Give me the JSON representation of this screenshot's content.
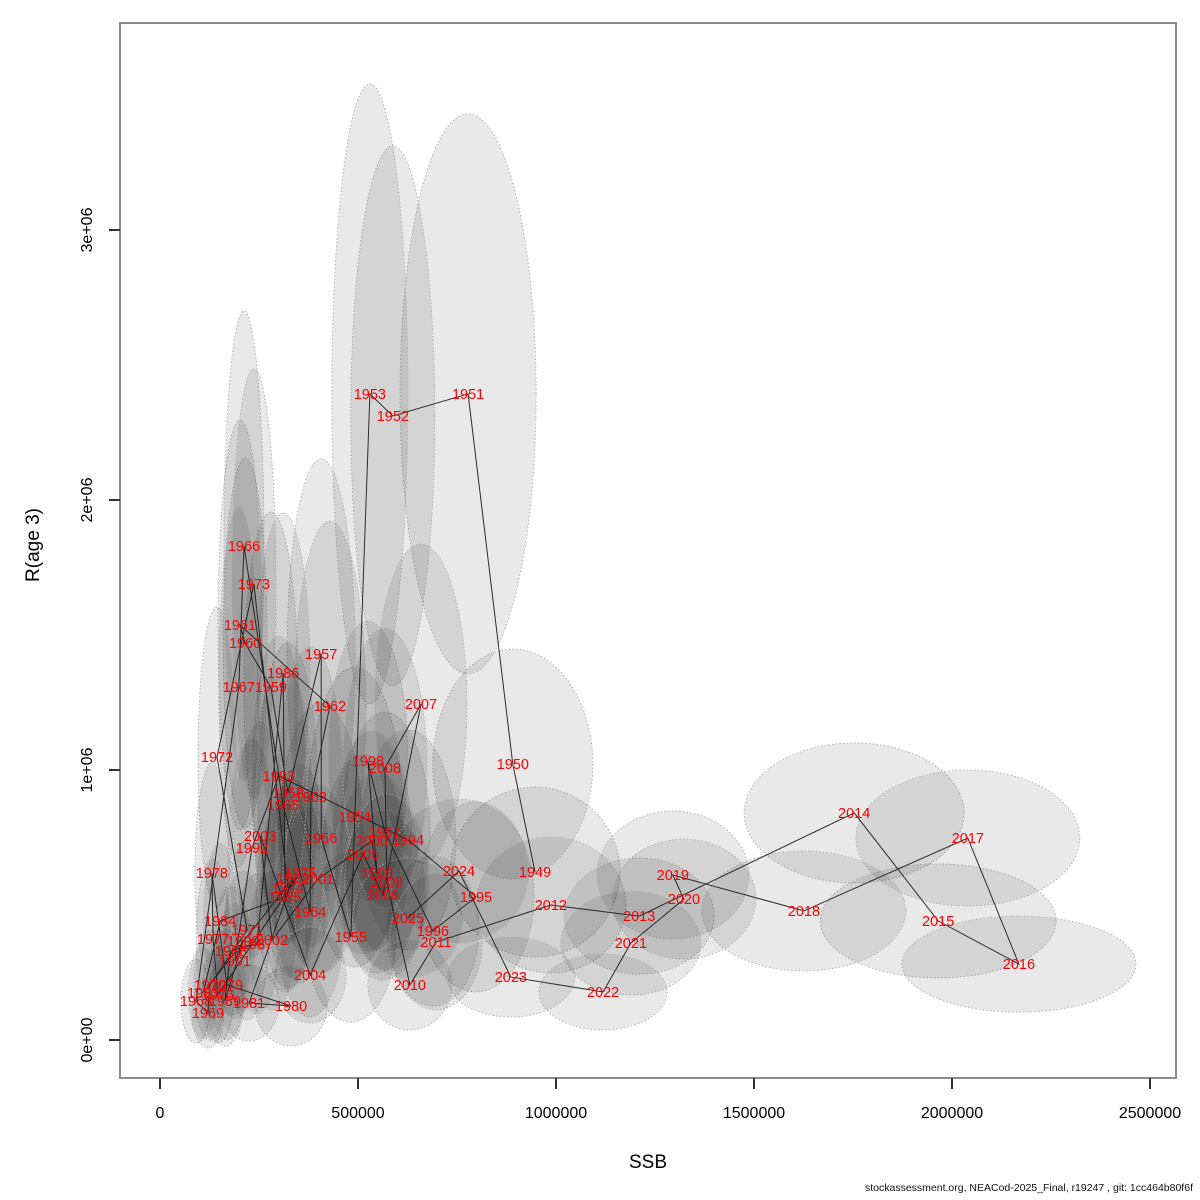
{
  "figure": {
    "footer": "stockassessment.org, NEACod-2025_Final, r19247 , git: 1cc464b80f6f"
  },
  "chart_data": {
    "type": "scatter",
    "title": "",
    "xlabel": "SSB",
    "ylabel": "R(age 3)",
    "xlim": [
      0,
      2500000
    ],
    "ylim": [
      0,
      3000000
    ],
    "grid": "off",
    "legend": "none",
    "label_color": "#FF0000",
    "line_color": "#1a1a1a",
    "ellipse_stroke": "#ababab",
    "ellipse_fill_rgba": "rgba(0,0,0,0.085)",
    "x_ticks": [
      {
        "value": 0,
        "label": "0"
      },
      {
        "value": 500000,
        "label": "500000"
      },
      {
        "value": 1000000,
        "label": "1000000"
      },
      {
        "value": 1500000,
        "label": "1500000"
      },
      {
        "value": 2000000,
        "label": "2000000"
      },
      {
        "value": 2500000,
        "label": "2500000"
      }
    ],
    "y_ticks": [
      {
        "value": 0,
        "label": "0e+00"
      },
      {
        "value": 1000000,
        "label": "1e+06"
      },
      {
        "value": 2000000,
        "label": "2e+06"
      },
      {
        "value": 3000000,
        "label": "3e+06"
      }
    ],
    "connect": "points joined by line in year order; each point labeled with year; gray dotted ellipses are confidence regions",
    "points": [
      {
        "year": 1949,
        "ssb": 947000,
        "r": 622000,
        "erx": 85,
        "ery": 85
      },
      {
        "year": 1950,
        "ssb": 891000,
        "r": 1022000,
        "erx": 80,
        "ery": 115
      },
      {
        "year": 1951,
        "ssb": 778000,
        "r": 2393000,
        "erx": 68,
        "ery": 280
      },
      {
        "year": 1952,
        "ssb": 588000,
        "r": 2311000,
        "erx": 42,
        "ery": 270
      },
      {
        "year": 1953,
        "ssb": 530000,
        "r": 2393000,
        "erx": 38,
        "ery": 310
      },
      {
        "year": 1954,
        "ssb": 492000,
        "r": 826000,
        "erx": 48,
        "ery": 150
      },
      {
        "year": 1955,
        "ssb": 482000,
        "r": 381000,
        "erx": 45,
        "ery": 85
      },
      {
        "year": 1956,
        "ssb": 407000,
        "r": 748000,
        "erx": 42,
        "ery": 135
      },
      {
        "year": 1957,
        "ssb": 407000,
        "r": 1430000,
        "erx": 34,
        "ery": 195
      },
      {
        "year": 1958,
        "ssb": 323000,
        "r": 915000,
        "erx": 30,
        "ery": 150
      },
      {
        "year": 1959,
        "ssb": 280000,
        "r": 1307000,
        "erx": 27,
        "ery": 175
      },
      {
        "year": 1960,
        "ssb": 215000,
        "r": 1470000,
        "erx": 22,
        "ery": 185
      },
      {
        "year": 1961,
        "ssb": 202000,
        "r": 1537000,
        "erx": 22,
        "ery": 205
      },
      {
        "year": 1962,
        "ssb": 429000,
        "r": 1237000,
        "erx": 36,
        "ery": 185
      },
      {
        "year": 1963,
        "ssb": 381000,
        "r": 900000,
        "erx": 33,
        "ery": 150
      },
      {
        "year": 1964,
        "ssb": 379000,
        "r": 474000,
        "erx": 35,
        "ery": 105
      },
      {
        "year": 1965,
        "ssb": 311000,
        "r": 870000,
        "erx": 30,
        "ery": 140
      },
      {
        "year": 1966,
        "ssb": 212000,
        "r": 1830000,
        "erx": 20,
        "ery": 235
      },
      {
        "year": 1967,
        "ssb": 199000,
        "r": 1307000,
        "erx": 20,
        "ery": 180
      },
      {
        "year": 1968,
        "ssb": 91000,
        "r": 144000,
        "erx": 15,
        "ery": 42
      },
      {
        "year": 1969,
        "ssb": 121000,
        "r": 100000,
        "erx": 16,
        "ery": 35
      },
      {
        "year": 1970,
        "ssb": 126000,
        "r": 204000,
        "erx": 16,
        "ery": 55
      },
      {
        "year": 1971,
        "ssb": 220000,
        "r": 407000,
        "erx": 22,
        "ery": 90
      },
      {
        "year": 1972,
        "ssb": 144000,
        "r": 1048000,
        "erx": 19,
        "ery": 150
      },
      {
        "year": 1973,
        "ssb": 237000,
        "r": 1689000,
        "erx": 22,
        "ery": 215
      },
      {
        "year": 1974,
        "ssb": 323000,
        "r": 563000,
        "erx": 27,
        "ery": 100
      },
      {
        "year": 1975,
        "ssb": 354000,
        "r": 619000,
        "erx": 30,
        "ery": 110
      },
      {
        "year": 1976,
        "ssb": 146000,
        "r": 167000,
        "erx": 16,
        "ery": 48
      },
      {
        "year": 1977,
        "ssb": 134000,
        "r": 374000,
        "erx": 17,
        "ery": 80
      },
      {
        "year": 1978,
        "ssb": 131000,
        "r": 619000,
        "erx": 17,
        "ery": 110
      },
      {
        "year": 1979,
        "ssb": 169000,
        "r": 204000,
        "erx": 18,
        "ery": 55
      },
      {
        "year": 1980,
        "ssb": 331000,
        "r": 126000,
        "erx": 36,
        "ery": 40
      },
      {
        "year": 1981,
        "ssb": 225000,
        "r": 137000,
        "erx": 30,
        "ery": 38
      },
      {
        "year": 1982,
        "ssb": 336000,
        "r": 600000,
        "erx": 30,
        "ery": 100
      },
      {
        "year": 1983,
        "ssb": 109000,
        "r": 174000,
        "erx": 15,
        "ery": 46
      },
      {
        "year": 1984,
        "ssb": 152000,
        "r": 441000,
        "erx": 17,
        "ery": 78
      },
      {
        "year": 1985,
        "ssb": 316000,
        "r": 530000,
        "erx": 29,
        "ery": 95
      },
      {
        "year": 1986,
        "ssb": 311000,
        "r": 1359000,
        "erx": 27,
        "ery": 160
      },
      {
        "year": 1987,
        "ssb": 245000,
        "r": 356000,
        "erx": 22,
        "ery": 70
      },
      {
        "year": 1988,
        "ssb": 179000,
        "r": 330000,
        "erx": 20,
        "ery": 65
      },
      {
        "year": 1989,
        "ssb": 164000,
        "r": 144000,
        "erx": 19,
        "ery": 45
      },
      {
        "year": 1990,
        "ssb": 210000,
        "r": 367000,
        "erx": 21,
        "ery": 70
      },
      {
        "year": 1991,
        "ssb": 189000,
        "r": 293000,
        "erx": 20,
        "ery": 58
      },
      {
        "year": 1992,
        "ssb": 232000,
        "r": 711000,
        "erx": 24,
        "ery": 110
      },
      {
        "year": 1993,
        "ssb": 300000,
        "r": 978000,
        "erx": 28,
        "ery": 140
      },
      {
        "year": 1994,
        "ssb": 626000,
        "r": 741000,
        "erx": 48,
        "ery": 110
      },
      {
        "year": 1995,
        "ssb": 798000,
        "r": 530000,
        "erx": 58,
        "ery": 95
      },
      {
        "year": 1996,
        "ssb": 689000,
        "r": 404000,
        "erx": 46,
        "ery": 75
      },
      {
        "year": 1997,
        "ssb": 568000,
        "r": 770000,
        "erx": 45,
        "ery": 120
      },
      {
        "year": 1998,
        "ssb": 525000,
        "r": 1033000,
        "erx": 40,
        "ery": 140
      },
      {
        "year": 1999,
        "ssb": 548000,
        "r": 619000,
        "erx": 42,
        "ery": 100
      },
      {
        "year": 2000,
        "ssb": 535000,
        "r": 737000,
        "erx": 40,
        "ery": 110
      },
      {
        "year": 2001,
        "ssb": 399000,
        "r": 596000,
        "erx": 35,
        "ery": 95
      },
      {
        "year": 2002,
        "ssb": 283000,
        "r": 370000,
        "erx": 24,
        "ery": 70
      },
      {
        "year": 2003,
        "ssb": 253000,
        "r": 756000,
        "erx": 26,
        "ery": 115
      },
      {
        "year": 2004,
        "ssb": 379000,
        "r": 241000,
        "erx": 36,
        "ery": 48
      },
      {
        "year": 2005,
        "ssb": 513000,
        "r": 689000,
        "erx": 42,
        "ery": 100
      },
      {
        "year": 2006,
        "ssb": 563000,
        "r": 537000,
        "erx": 43,
        "ery": 85
      },
      {
        "year": 2007,
        "ssb": 659000,
        "r": 1244000,
        "erx": 46,
        "ery": 160
      },
      {
        "year": 2008,
        "ssb": 568000,
        "r": 1007000,
        "erx": 42,
        "ery": 140
      },
      {
        "year": 2009,
        "ssb": 573000,
        "r": 585000,
        "erx": 42,
        "ery": 88
      },
      {
        "year": 2010,
        "ssb": 631000,
        "r": 204000,
        "erx": 42,
        "ery": 45
      },
      {
        "year": 2011,
        "ssb": 697000,
        "r": 363000,
        "erx": 46,
        "ery": 68
      },
      {
        "year": 2012,
        "ssb": 987000,
        "r": 500000,
        "erx": 75,
        "ery": 68
      },
      {
        "year": 2013,
        "ssb": 1210000,
        "r": 459000,
        "erx": 75,
        "ery": 58
      },
      {
        "year": 2014,
        "ssb": 1753000,
        "r": 841000,
        "erx": 110,
        "ery": 70
      },
      {
        "year": 2015,
        "ssb": 1965000,
        "r": 441000,
        "erx": 118,
        "ery": 57
      },
      {
        "year": 2016,
        "ssb": 2169000,
        "r": 281000,
        "erx": 117,
        "ery": 48
      },
      {
        "year": 2017,
        "ssb": 2040000,
        "r": 748000,
        "erx": 112,
        "ery": 68
      },
      {
        "year": 2018,
        "ssb": 1626000,
        "r": 478000,
        "erx": 102,
        "ery": 60
      },
      {
        "year": 2019,
        "ssb": 1295000,
        "r": 611000,
        "erx": 76,
        "ery": 64
      },
      {
        "year": 2020,
        "ssb": 1323000,
        "r": 522000,
        "erx": 72,
        "ery": 60
      },
      {
        "year": 2021,
        "ssb": 1189000,
        "r": 359000,
        "erx": 70,
        "ery": 52
      },
      {
        "year": 2022,
        "ssb": 1119000,
        "r": 178000,
        "erx": 64,
        "ery": 38
      },
      {
        "year": 2023,
        "ssb": 886000,
        "r": 233000,
        "erx": 64,
        "ery": 40
      },
      {
        "year": 2024,
        "ssb": 755000,
        "r": 626000,
        "erx": 70,
        "ery": 72
      },
      {
        "year": 2025,
        "ssb": 626000,
        "r": 452000,
        "erx": 55,
        "ery": 60
      }
    ]
  }
}
